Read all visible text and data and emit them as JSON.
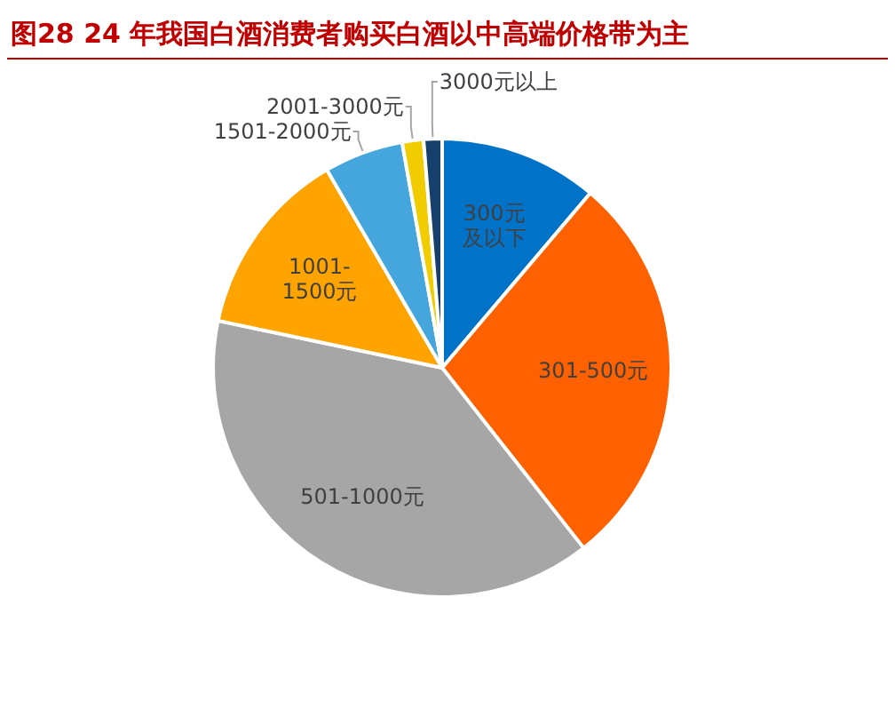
{
  "chart_data": {
    "type": "pie",
    "title": "图28 24 年我国白酒消费者购买白酒以中高端价格带为主",
    "categories": [
      "300元及以下",
      "301-500元",
      "501-1000元",
      "1001-1500元",
      "1501-2000元",
      "2001-3000元",
      "3000元以上"
    ],
    "values": [
      11.2,
      28.2,
      38.9,
      13.3,
      5.6,
      1.5,
      1.3
    ],
    "colors": [
      "#0073c8",
      "#ff6100",
      "#a6a6a6",
      "#ffa300",
      "#45a6dd",
      "#f0cc00",
      "#163f6b"
    ]
  }
}
